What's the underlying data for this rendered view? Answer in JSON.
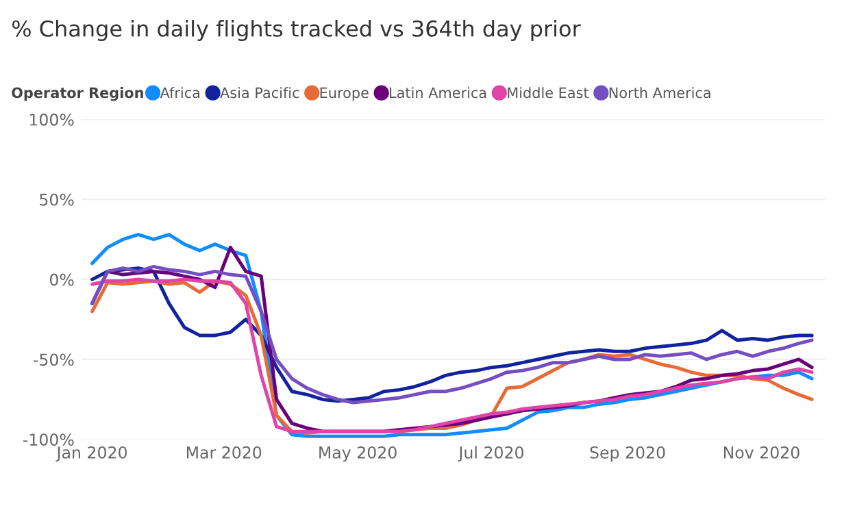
{
  "chart_data": {
    "type": "line",
    "title": "% Change in daily flights tracked vs 364th day prior",
    "legend_title": "Operator Region",
    "legend": "top left",
    "grid": "y",
    "marker": "none",
    "line_style": "solid",
    "x": [
      "2020-01-01",
      "2020-01-08",
      "2020-01-15",
      "2020-01-22",
      "2020-01-29",
      "2020-02-05",
      "2020-02-12",
      "2020-02-19",
      "2020-02-26",
      "2020-03-04",
      "2020-03-11",
      "2020-03-18",
      "2020-03-25",
      "2020-04-01",
      "2020-04-08",
      "2020-04-15",
      "2020-04-22",
      "2020-04-29",
      "2020-05-06",
      "2020-05-13",
      "2020-05-20",
      "2020-05-27",
      "2020-06-03",
      "2020-06-10",
      "2020-06-17",
      "2020-06-24",
      "2020-07-01",
      "2020-07-08",
      "2020-07-15",
      "2020-07-22",
      "2020-07-29",
      "2020-08-05",
      "2020-08-12",
      "2020-08-19",
      "2020-08-26",
      "2020-09-02",
      "2020-09-09",
      "2020-09-16",
      "2020-09-23",
      "2020-09-30",
      "2020-10-07",
      "2020-10-14",
      "2020-10-21",
      "2020-10-28",
      "2020-11-04",
      "2020-11-11",
      "2020-11-18",
      "2020-11-24"
    ],
    "xlim": [
      "2019-12-27",
      "2020-11-30"
    ],
    "xticks": [
      {
        "value": "2020-01-01",
        "label": "Jan 2020"
      },
      {
        "value": "2020-03-01",
        "label": "Mar 2020"
      },
      {
        "value": "2020-05-01",
        "label": "May 2020"
      },
      {
        "value": "2020-07-01",
        "label": "Jul 2020"
      },
      {
        "value": "2020-09-01",
        "label": "Sep 2020"
      },
      {
        "value": "2020-11-01",
        "label": "Nov 2020"
      }
    ],
    "ylim": [
      -100,
      100
    ],
    "yticks": [
      {
        "value": -100,
        "label": "-100%"
      },
      {
        "value": -50,
        "label": "-50%"
      },
      {
        "value": 0,
        "label": "0%"
      },
      {
        "value": 50,
        "label": "50%"
      },
      {
        "value": 100,
        "label": "100%"
      }
    ],
    "series": [
      {
        "name": "Africa",
        "color": "#118dff",
        "values": [
          10,
          20,
          25,
          28,
          25,
          28,
          22,
          18,
          22,
          18,
          15,
          -20,
          -85,
          -97,
          -98,
          -98,
          -98,
          -98,
          -98,
          -98,
          -97,
          -97,
          -97,
          -97,
          -96,
          -95,
          -94,
          -93,
          -88,
          -83,
          -82,
          -80,
          -80,
          -78,
          -77,
          -75,
          -74,
          -72,
          -70,
          -68,
          -66,
          -64,
          -62,
          -61,
          -60,
          -60,
          -58,
          -62
        ]
      },
      {
        "name": "Asia Pacific",
        "color": "#12239e",
        "values": [
          0,
          5,
          6,
          7,
          5,
          -15,
          -30,
          -35,
          -35,
          -33,
          -25,
          -35,
          -55,
          -70,
          -72,
          -75,
          -76,
          -75,
          -74,
          -70,
          -69,
          -67,
          -64,
          -60,
          -58,
          -57,
          -55,
          -54,
          -52,
          -50,
          -48,
          -46,
          -45,
          -44,
          -45,
          -45,
          -43,
          -42,
          -41,
          -40,
          -38,
          -32,
          -38,
          -37,
          -38,
          -36,
          -35,
          -35
        ]
      },
      {
        "name": "Europe",
        "color": "#e66c37",
        "values": [
          -20,
          -2,
          -3,
          -2,
          -1,
          -3,
          -2,
          -8,
          -1,
          -3,
          -10,
          -35,
          -85,
          -95,
          -96,
          -95,
          -95,
          -95,
          -95,
          -95,
          -94,
          -94,
          -93,
          -93,
          -91,
          -88,
          -85,
          -68,
          -67,
          -62,
          -57,
          -52,
          -50,
          -47,
          -48,
          -47,
          -50,
          -53,
          -55,
          -58,
          -60,
          -60,
          -60,
          -62,
          -63,
          -68,
          -72,
          -75
        ]
      },
      {
        "name": "Latin America",
        "color": "#6b007b",
        "values": [
          -15,
          5,
          3,
          4,
          5,
          4,
          2,
          0,
          -5,
          20,
          5,
          2,
          -75,
          -90,
          -93,
          -95,
          -95,
          -95,
          -95,
          -95,
          -94,
          -93,
          -92,
          -91,
          -90,
          -88,
          -86,
          -84,
          -82,
          -81,
          -80,
          -79,
          -77,
          -76,
          -74,
          -72,
          -71,
          -70,
          -67,
          -63,
          -62,
          -60,
          -59,
          -57,
          -56,
          -53,
          -50,
          -55
        ]
      },
      {
        "name": "Middle East",
        "color": "#e044a7",
        "values": [
          -3,
          -1,
          -1,
          0,
          -1,
          -1,
          0,
          -1,
          -1,
          -2,
          -15,
          -60,
          -92,
          -95,
          -95,
          -95,
          -95,
          -95,
          -95,
          -95,
          -95,
          -94,
          -92,
          -90,
          -88,
          -86,
          -84,
          -83,
          -81,
          -80,
          -79,
          -78,
          -77,
          -76,
          -75,
          -73,
          -72,
          -70,
          -68,
          -66,
          -65,
          -64,
          -62,
          -61,
          -62,
          -58,
          -56,
          -58
        ]
      },
      {
        "name": "North America",
        "color": "#744ec2",
        "values": [
          -15,
          5,
          7,
          5,
          8,
          6,
          5,
          3,
          5,
          3,
          2,
          -20,
          -50,
          -62,
          -68,
          -72,
          -75,
          -77,
          -76,
          -75,
          -74,
          -72,
          -70,
          -70,
          -68,
          -65,
          -62,
          -58,
          -57,
          -55,
          -52,
          -52,
          -50,
          -48,
          -50,
          -50,
          -47,
          -48,
          -47,
          -46,
          -50,
          -47,
          -45,
          -48,
          -45,
          -43,
          -40,
          -38
        ]
      }
    ]
  }
}
